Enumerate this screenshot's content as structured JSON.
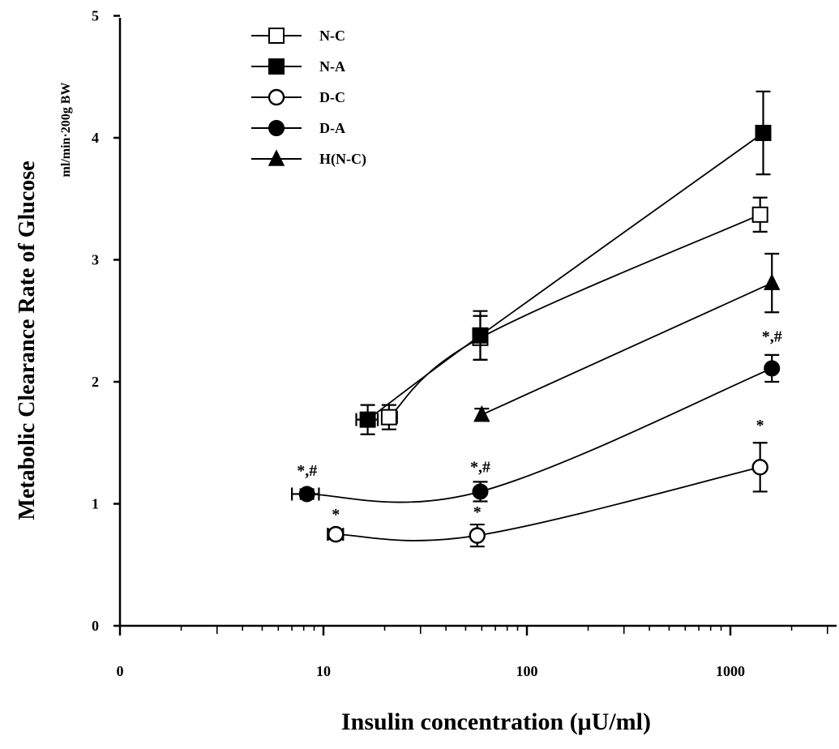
{
  "chart_data": {
    "type": "line",
    "xlabel": "Insulin concentration (μU/ml)",
    "ylabel": "Metabolic Clearance Rate of Glucose",
    "ylabel_sub": "ml/min·200g BW",
    "x_scale": "log",
    "xlim": [
      1,
      4000
    ],
    "ylim": [
      0,
      5
    ],
    "x_ticks": [
      {
        "value": 1,
        "label": "0"
      },
      {
        "value": 10,
        "label": "10"
      },
      {
        "value": 100,
        "label": "100"
      },
      {
        "value": 1000,
        "label": "1000"
      }
    ],
    "y_ticks": [
      {
        "value": 0,
        "label": "0"
      },
      {
        "value": 1,
        "label": "1"
      },
      {
        "value": 2,
        "label": "2"
      },
      {
        "value": 3,
        "label": "3"
      },
      {
        "value": 4,
        "label": "4"
      },
      {
        "value": 5,
        "label": "5"
      }
    ],
    "grid": false,
    "legend_position": "top-left",
    "series": [
      {
        "name": "N-C",
        "marker": "square-open",
        "points": [
          {
            "x": 21,
            "y": 1.71,
            "err": 0.1,
            "xerr": [
              19.5,
              23
            ]
          },
          {
            "x": 59,
            "y": 2.36,
            "err": 0.18
          },
          {
            "x": 1400,
            "y": 3.37,
            "err": 0.14
          }
        ]
      },
      {
        "name": "N-A",
        "marker": "square-filled",
        "points": [
          {
            "x": 16.5,
            "y": 1.69,
            "err": 0.12,
            "xerr": [
              14.5,
              18.5
            ]
          },
          {
            "x": 59,
            "y": 2.38,
            "err": 0.2
          },
          {
            "x": 1450,
            "y": 4.04,
            "err": 0.34
          }
        ]
      },
      {
        "name": "D-C",
        "marker": "circle-open",
        "points": [
          {
            "x": 11.5,
            "y": 0.75,
            "err": 0.04,
            "xerr": [
              10.5,
              12.5
            ]
          },
          {
            "x": 57,
            "y": 0.74,
            "err": 0.09
          },
          {
            "x": 1400,
            "y": 1.3,
            "err": 0.2
          }
        ]
      },
      {
        "name": "D-A",
        "marker": "circle-filled",
        "points": [
          {
            "x": 8.3,
            "y": 1.08,
            "err": 0.04,
            "xerr": [
              7.0,
              9.5
            ]
          },
          {
            "x": 59,
            "y": 1.1,
            "err": 0.08
          },
          {
            "x": 1600,
            "y": 2.11,
            "err": 0.11
          }
        ]
      },
      {
        "name": "H(N-C)",
        "marker": "triangle-filled",
        "points": [
          {
            "x": 60,
            "y": 1.73,
            "err": 0.05
          },
          {
            "x": 1600,
            "y": 2.81,
            "err": 0.24
          }
        ]
      }
    ],
    "annotations": [
      {
        "text": "*,#",
        "x": 8.3,
        "y": 1.23
      },
      {
        "text": "*",
        "x": 11.5,
        "y": 0.87
      },
      {
        "text": "*,#",
        "x": 59,
        "y": 1.26
      },
      {
        "text": "*",
        "x": 57,
        "y": 0.89
      },
      {
        "text": "*,#",
        "x": 1600,
        "y": 2.33
      },
      {
        "text": "*",
        "x": 1400,
        "y": 1.6
      }
    ]
  }
}
